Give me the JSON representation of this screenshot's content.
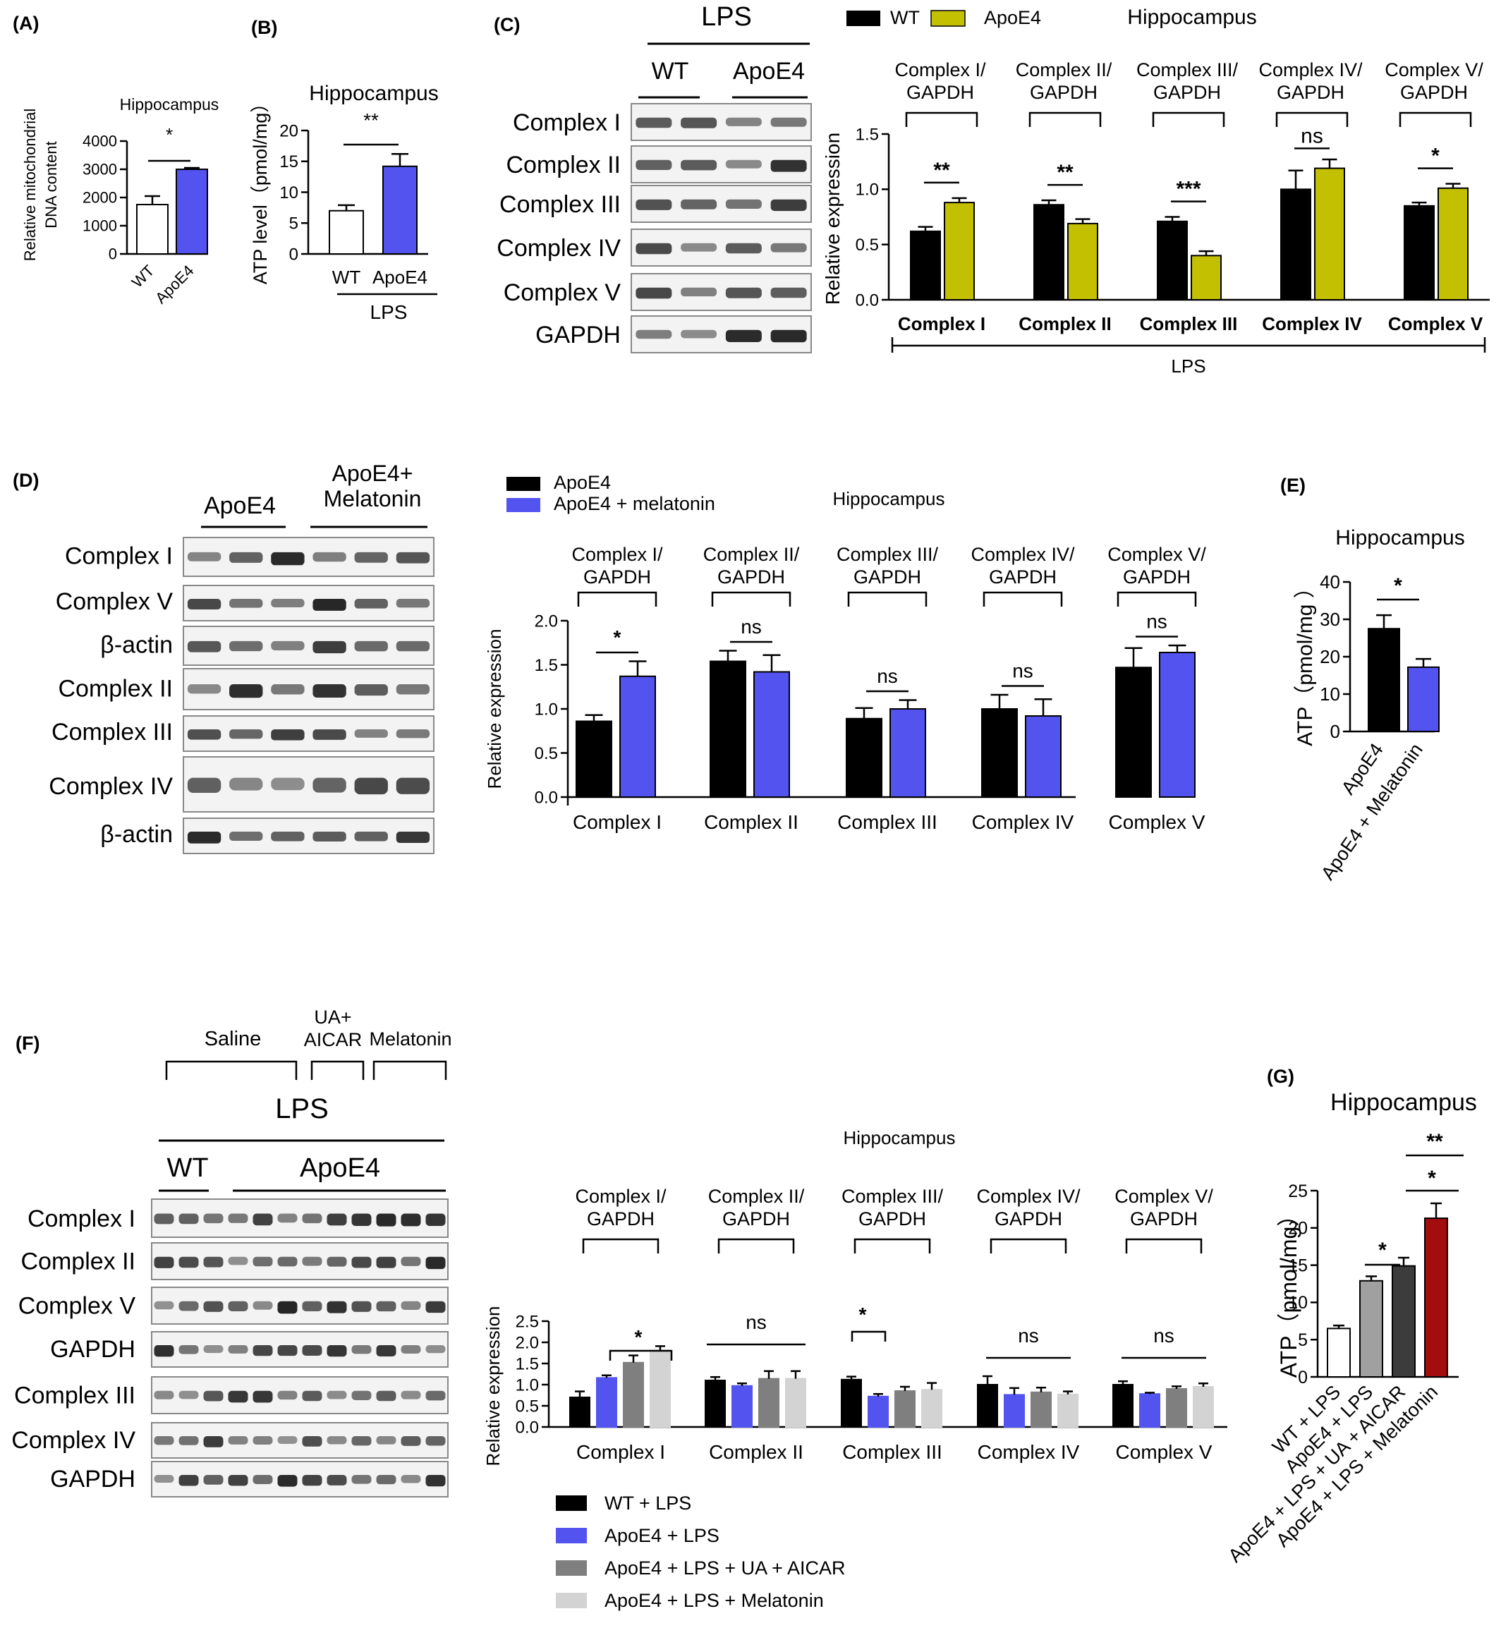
{
  "colors": {
    "wt": "#000000",
    "apoe4_blue": "#5353f0",
    "olive": "#c2c000",
    "gray": "#7f7f7f",
    "lightgray": "#d3d3d3",
    "dark": "#3c3c3c",
    "red": "#a30d0d",
    "white": "#ffffff"
  },
  "panels": {
    "A": {
      "label": "(A)",
      "title": "Hippocampus",
      "ylabel_1": "Relative mitochondrial",
      "ylabel_2": "DNA content",
      "sig": "*",
      "yticks": [
        "0",
        "1000",
        "2000",
        "3000",
        "4000"
      ],
      "categories": [
        "WT",
        "ApoE4"
      ]
    },
    "B": {
      "label": "(B)",
      "title": "Hippocampus",
      "ylabel": "ATP level（pmol/mg）",
      "sig": "**",
      "yticks": [
        "0",
        "5",
        "10",
        "15",
        "20"
      ],
      "categories": [
        "WT",
        "ApoE4"
      ],
      "group": "LPS"
    },
    "C": {
      "label": "(C)",
      "blot_top": "LPS",
      "blot_groups": [
        "WT",
        "ApoE4"
      ],
      "blot_rows": [
        "Complex I",
        "Complex II",
        "Complex III",
        "Complex IV",
        "Complex V",
        "GAPDH"
      ],
      "legend": [
        "WT",
        "ApoE4"
      ],
      "title": "Hippocampus",
      "ylabel": "Relative expression",
      "yticks": [
        "0.0",
        "0.5",
        "1.0",
        "1.5"
      ],
      "pairs": [
        "Complex I/\nGAPDH",
        "Complex II/\nGAPDH",
        "Complex III/\nGAPDH",
        "Complex IV/\nGAPDH",
        "Complex V/\nGAPDH"
      ],
      "sigs": [
        "**",
        "**",
        "***",
        "ns",
        "*"
      ],
      "categories": [
        "Complex I",
        "Complex II",
        "Complex III",
        "Complex IV",
        "Complex V"
      ],
      "group": "LPS"
    },
    "D": {
      "label": "(D)",
      "blot_groups": [
        "ApoE4",
        "ApoE4+\nMelatonin"
      ],
      "blot_rows": [
        "Complex I",
        "Complex V",
        "β-actin",
        "Complex II",
        "Complex III",
        "Complex IV",
        "β-actin"
      ],
      "legend": [
        "ApoE4",
        "ApoE4 + melatonin"
      ],
      "title": "Hippocampus",
      "ylabel": "Relative expression",
      "yticks": [
        "0.0",
        "0.5",
        "1.0",
        "1.5",
        "2.0"
      ],
      "pairs": [
        "Complex I/\nGAPDH",
        "Complex II/\nGAPDH",
        "Complex III/\nGAPDH",
        "Complex IV/\nGAPDH",
        "Complex V/\nGAPDH"
      ],
      "sigs": [
        "*",
        "ns",
        "ns",
        "ns",
        "ns"
      ],
      "categories": [
        "Complex I",
        "Complex II",
        "Complex III",
        "Complex IV",
        "Complex V"
      ]
    },
    "E": {
      "label": "(E)",
      "title": "Hippocampus",
      "ylabel": "ATP（pmol/mg ）",
      "sig": "*",
      "yticks": [
        "0",
        "10",
        "20",
        "30",
        "40"
      ],
      "categories": [
        "ApoE4",
        "ApoE4 + Melatonin"
      ]
    },
    "F": {
      "label": "(F)",
      "treatments": [
        "Saline",
        "UA+\nAICAR",
        "Melatonin"
      ],
      "blot_top": "LPS",
      "blot_groups": [
        "WT",
        "ApoE4"
      ],
      "blot_rows": [
        "Complex I",
        "Complex II",
        "Complex V",
        "GAPDH",
        "Complex III",
        "Complex IV",
        "GAPDH"
      ],
      "title": "Hippocampus",
      "ylabel": "Relative expression",
      "yticks": [
        "0.0",
        "0.5",
        "1.0",
        "1.5",
        "2.0",
        "2.5"
      ],
      "pairs": [
        "Complex I/\nGAPDH",
        "Complex II/\nGAPDH",
        "Complex III/\nGAPDH",
        "Complex IV/\nGAPDH",
        "Complex V/\nGAPDH"
      ],
      "sigs": [
        "*",
        "ns",
        "*",
        "ns",
        "ns"
      ],
      "categories": [
        "Complex I",
        "Complex II",
        "Complex III",
        "Complex IV",
        "Complex V"
      ],
      "legend": [
        "WT + LPS",
        "ApoE4 + LPS",
        "ApoE4 + LPS + UA + AICAR",
        "ApoE4 + LPS + Melatonin"
      ]
    },
    "G": {
      "label": "(G)",
      "title": "Hippocampus",
      "ylabel": "ATP（pmol/mg）",
      "yticks": [
        "0",
        "5",
        "10",
        "15",
        "20",
        "25"
      ],
      "sigs": [
        "*",
        "*",
        "**"
      ],
      "categories": [
        "WT + LPS",
        "ApoE4 + LPS",
        "ApoE4 + LPS + UA + AICAR",
        "ApoE4 + LPS + Melatonin"
      ]
    }
  },
  "chart_data": [
    {
      "panel": "A",
      "type": "bar",
      "title": "Hippocampus",
      "ylabel": "Relative mitochondrial DNA content",
      "categories": [
        "WT",
        "ApoE4"
      ],
      "values": [
        1750,
        3000
      ],
      "errors": [
        300,
        50
      ],
      "ylim": [
        0,
        4000
      ]
    },
    {
      "panel": "B",
      "type": "bar",
      "title": "Hippocampus",
      "ylabel": "ATP level（pmol/mg）",
      "xlabel": "LPS",
      "categories": [
        "WT",
        "ApoE4"
      ],
      "values": [
        7,
        14.2
      ],
      "errors": [
        0.9,
        2.0
      ],
      "ylim": [
        0,
        20
      ]
    },
    {
      "panel": "C",
      "type": "bar",
      "title": "Hippocampus",
      "ylabel": "Relative expression",
      "xlabel": "LPS",
      "ylim": [
        0,
        1.5
      ],
      "categories": [
        "Complex I",
        "Complex II",
        "Complex III",
        "Complex IV",
        "Complex V"
      ],
      "series": [
        {
          "name": "WT",
          "values": [
            0.62,
            0.86,
            0.71,
            1.0,
            0.85
          ],
          "errors": [
            0.04,
            0.04,
            0.04,
            0.17,
            0.03
          ]
        },
        {
          "name": "ApoE4",
          "values": [
            0.88,
            0.69,
            0.4,
            1.19,
            1.01
          ],
          "errors": [
            0.04,
            0.04,
            0.04,
            0.08,
            0.04
          ]
        }
      ]
    },
    {
      "panel": "D",
      "type": "bar",
      "title": "Hippocampus",
      "ylabel": "Relative expression",
      "ylim": [
        0,
        2.0
      ],
      "categories": [
        "Complex I",
        "Complex II",
        "Complex III",
        "Complex IV",
        "Complex V"
      ],
      "series": [
        {
          "name": "ApoE4",
          "values": [
            0.86,
            1.54,
            0.89,
            1.0,
            1.47
          ],
          "errors": [
            0.07,
            0.12,
            0.12,
            0.16,
            0.22
          ]
        },
        {
          "name": "ApoE4 + melatonin",
          "values": [
            1.37,
            1.42,
            1.0,
            0.92,
            1.64
          ],
          "errors": [
            0.17,
            0.19,
            0.1,
            0.19,
            0.08
          ]
        }
      ]
    },
    {
      "panel": "E",
      "type": "bar",
      "title": "Hippocampus",
      "ylabel": "ATP（pmol/mg ）",
      "ylim": [
        0,
        40
      ],
      "categories": [
        "ApoE4",
        "ApoE4 + Melatonin"
      ],
      "values": [
        27.5,
        17.2
      ],
      "errors": [
        3.6,
        2.2
      ]
    },
    {
      "panel": "F",
      "type": "bar",
      "title": "Hippocampus",
      "ylabel": "Relative expression",
      "ylim": [
        0,
        2.5
      ],
      "categories": [
        "Complex I",
        "Complex II",
        "Complex III",
        "Complex IV",
        "Complex V"
      ],
      "series": [
        {
          "name": "WT + LPS",
          "values": [
            0.7,
            1.1,
            1.12,
            1.0,
            1.0
          ],
          "errors": [
            0.14,
            0.08,
            0.07,
            0.2,
            0.08
          ]
        },
        {
          "name": "ApoE4 + LPS",
          "values": [
            1.16,
            0.97,
            0.72,
            0.76,
            0.78
          ],
          "errors": [
            0.06,
            0.06,
            0.06,
            0.16,
            0.03
          ]
        },
        {
          "name": "ApoE4 + LPS + UA + AICAR",
          "values": [
            1.52,
            1.14,
            0.85,
            0.82,
            0.9
          ],
          "errors": [
            0.17,
            0.18,
            0.1,
            0.11,
            0.06
          ]
        },
        {
          "name": "ApoE4 + LPS + Melatonin",
          "values": [
            1.81,
            1.14,
            0.88,
            0.77,
            0.95
          ],
          "errors": [
            0.1,
            0.18,
            0.16,
            0.07,
            0.08
          ]
        }
      ]
    },
    {
      "panel": "G",
      "type": "bar",
      "title": "Hippocampus",
      "ylabel": "ATP（pmol/mg）",
      "ylim": [
        0,
        25
      ],
      "categories": [
        "WT + LPS",
        "ApoE4 + LPS",
        "ApoE4 + LPS + UA + AICAR",
        "ApoE4 + LPS + Melatonin"
      ],
      "values": [
        6.5,
        12.9,
        14.9,
        21.3
      ],
      "errors": [
        0.4,
        0.6,
        1.1,
        2.0
      ]
    }
  ]
}
